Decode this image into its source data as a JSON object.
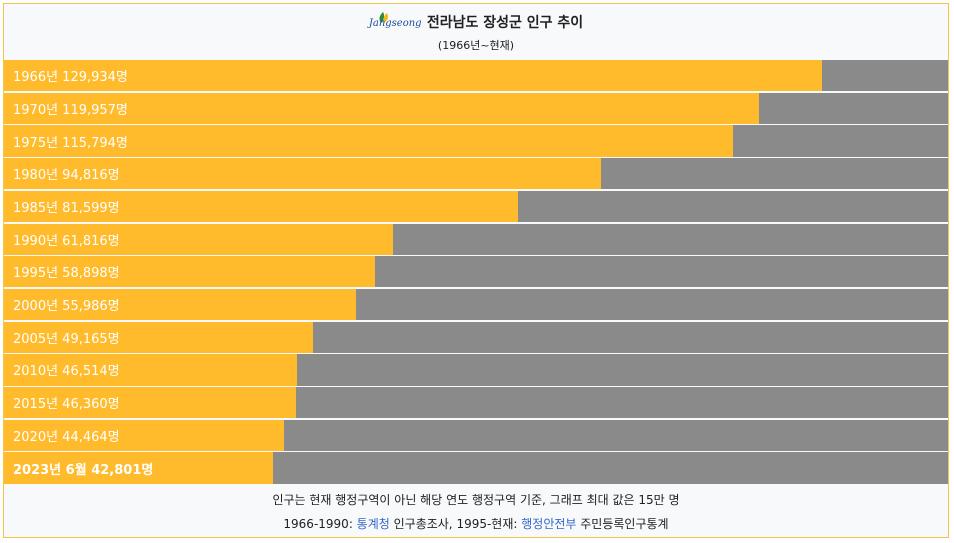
{
  "title": "전라남도 장성군 인구 추이",
  "subtitle": "(1966년~현재)",
  "logo_text": "Jangseong",
  "colors": {
    "bar": "#ffbb2b",
    "remainder": "#8a8a8a",
    "link": "#3366cc",
    "frame": "#f4c44a"
  },
  "chart_data": {
    "type": "bar",
    "orientation": "horizontal",
    "title": "전라남도 장성군 인구 추이",
    "subtitle": "(1966년~현재)",
    "xlim": [
      0,
      150000
    ],
    "categories": [
      "1966년",
      "1970년",
      "1975년",
      "1980년",
      "1985년",
      "1990년",
      "1995년",
      "2000년",
      "2005년",
      "2010년",
      "2015년",
      "2020년",
      "2023년 6월"
    ],
    "values": [
      129934,
      119957,
      115794,
      94816,
      81599,
      61816,
      58898,
      55986,
      49165,
      46514,
      46360,
      44464,
      42801
    ],
    "labels": [
      "1966년 129,934명",
      "1970년 119,957명",
      "1975년 115,794명",
      "1980년 94,816명",
      "1985년 81,599명",
      "1990년 61,816명",
      "1995년 58,898명",
      "2000년 55,986명",
      "2005년 49,165명",
      "2010년 46,514명",
      "2015년 46,360명",
      "2020년 44,464명",
      "2023년 6월 42,801명"
    ],
    "highlight_last": true
  },
  "footer": {
    "note": "인구는 현재 행정구역이 아닌 해당 연도 행정구역 기준, 그래프 최대 값은 15만 명",
    "source_prefix": "1966-1990: ",
    "source_link1": "통계청",
    "source_mid": " 인구총조사, 1995-현재: ",
    "source_link2": "행정안전부",
    "source_suffix": " 주민등록인구통계"
  }
}
